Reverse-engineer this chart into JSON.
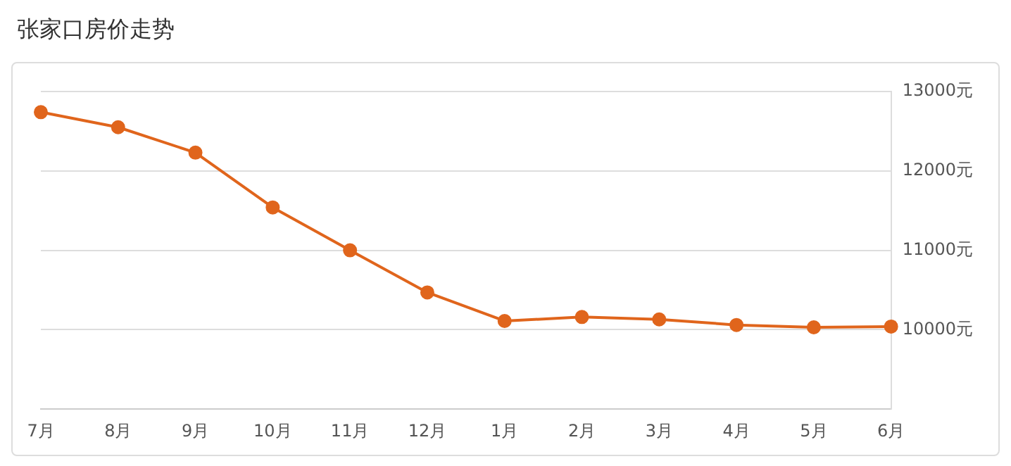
{
  "chart_data": {
    "type": "line",
    "title": "张家口房价走势",
    "categories": [
      "7月",
      "8月",
      "9月",
      "10月",
      "11月",
      "12月",
      "1月",
      "2月",
      "3月",
      "4月",
      "5月",
      "6月"
    ],
    "series": [
      {
        "color": "#e0651c",
        "values": [
          12740,
          12550,
          12230,
          11540,
          11000,
          10470,
          10110,
          10160,
          10130,
          10060,
          10030,
          10040
        ]
      }
    ],
    "ylim": [
      9000,
      13000
    ],
    "yticks": [
      {
        "value": 9000,
        "label": null
      },
      {
        "value": 10000,
        "label": "10000元"
      },
      {
        "value": 11000,
        "label": "11000元"
      },
      {
        "value": 12000,
        "label": "12000元"
      },
      {
        "value": 13000,
        "label": "13000元"
      }
    ],
    "grid": "y",
    "legend": false,
    "marker": "circle",
    "line_style": "solid"
  }
}
